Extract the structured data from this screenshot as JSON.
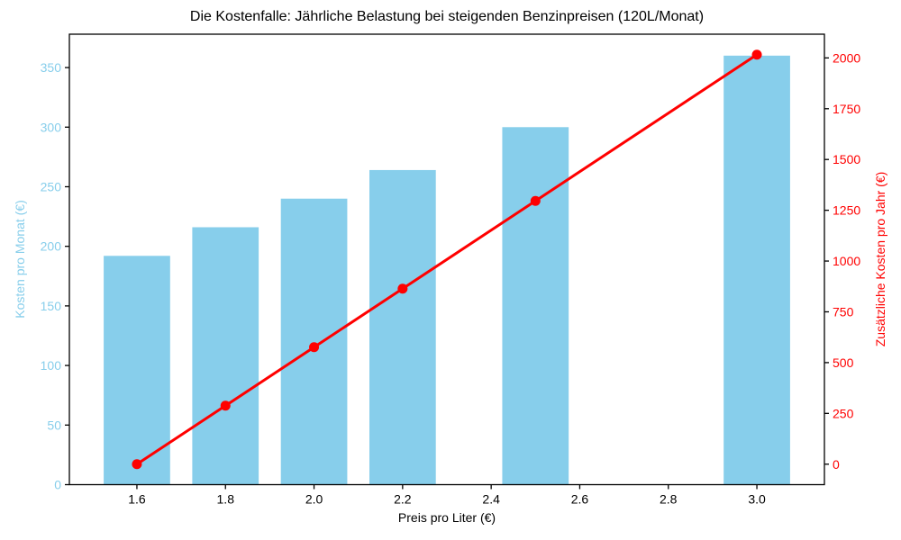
{
  "chart_data": {
    "type": "bar",
    "overlay": "line",
    "title": "Die Kostenfalle: Jährliche Belastung bei steigenden Benzinpreisen (120L/Monat)",
    "xlabel": "Preis pro Liter (€)",
    "background_color": "#ffffff",
    "frame_color": "#000000",
    "grid": false,
    "legend": null,
    "x": [
      1.6,
      1.8,
      2.0,
      2.2,
      2.5,
      3.0
    ],
    "series": [
      {
        "name": "Kosten pro Monat (€)",
        "type": "bar",
        "axis": "left",
        "values": [
          192,
          216,
          240,
          264,
          300,
          360
        ],
        "color": "#87CEEB",
        "bar_width": 0.15
      },
      {
        "name": "Zusätzliche Kosten pro Jahr (€)",
        "type": "line",
        "axis": "right",
        "values": [
          0,
          288,
          576,
          864,
          1296,
          2016
        ],
        "color": "#FF0000",
        "marker": "circle",
        "marker_radius": 5.5,
        "line_width": 3
      }
    ],
    "x_axis": {
      "ticks": [
        1.6,
        1.8,
        2.0,
        2.2,
        2.4,
        2.6,
        2.8,
        3.0
      ],
      "tick_labels": [
        "1.6",
        "1.8",
        "2.0",
        "2.2",
        "2.4",
        "2.6",
        "2.8",
        "3.0"
      ],
      "lim": [
        1.4475,
        3.1525
      ],
      "tick_color": "#000000"
    },
    "left_axis": {
      "label": "Kosten pro Monat (€)",
      "color": "#87CEEB",
      "ticks": [
        0,
        50,
        100,
        150,
        200,
        250,
        300,
        350
      ],
      "tick_labels": [
        "0",
        "50",
        "100",
        "150",
        "200",
        "250",
        "300",
        "350"
      ],
      "lim": [
        0,
        378
      ]
    },
    "right_axis": {
      "label": "Zusätzliche Kosten pro Jahr (€)",
      "color": "#FF0000",
      "ticks": [
        0,
        250,
        500,
        750,
        1000,
        1250,
        1500,
        1750,
        2000
      ],
      "tick_labels": [
        "0",
        "250",
        "500",
        "750",
        "1000",
        "1250",
        "1500",
        "1750",
        "2000"
      ],
      "lim": [
        -100.8,
        2116.8
      ]
    }
  }
}
